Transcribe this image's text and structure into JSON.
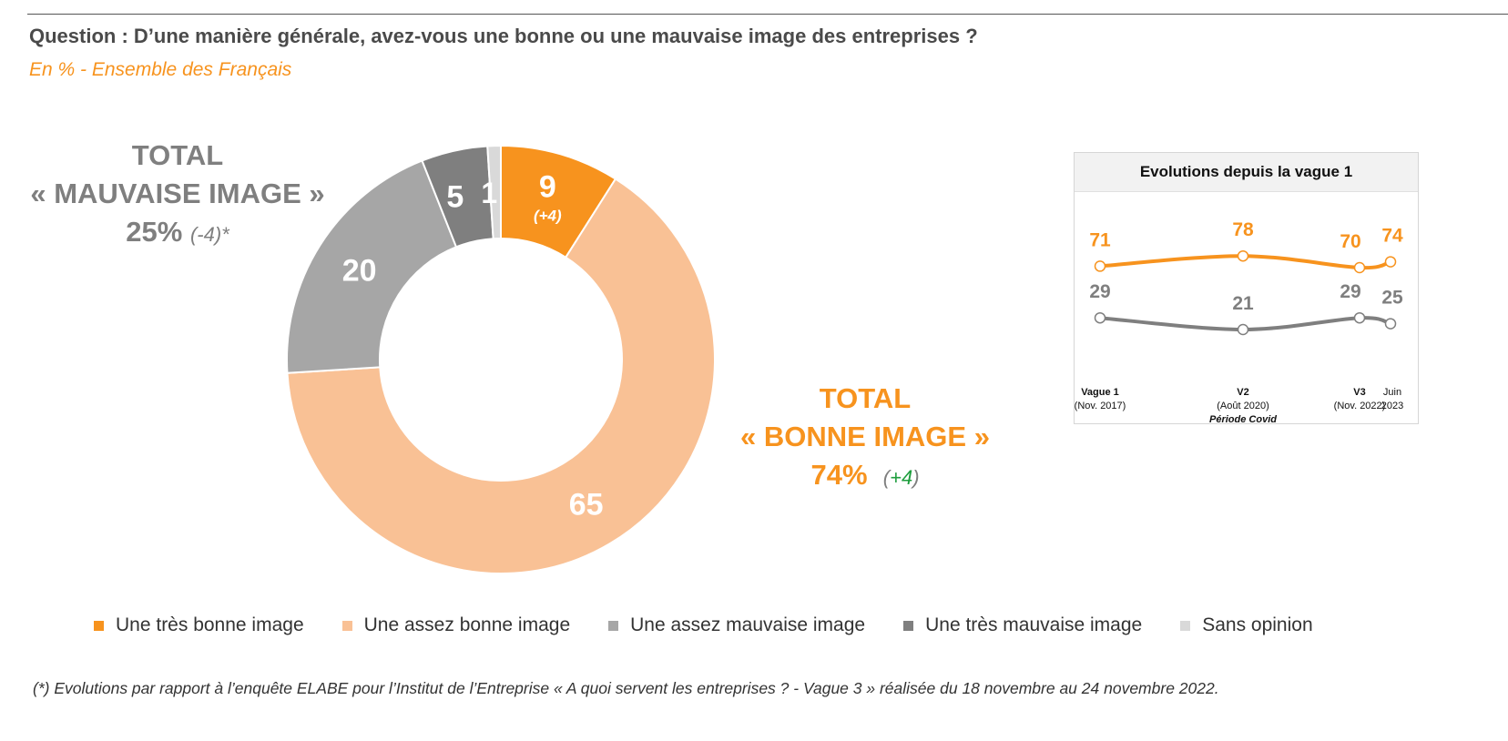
{
  "question": "Question : D’une manière générale, avez-vous une bonne ou une mauvaise image des entreprises ?",
  "subtitle": "En % - Ensemble des Français",
  "total_bad": {
    "line1": "TOTAL",
    "line2": "« MAUVAISE IMAGE »",
    "pct": "25%",
    "delta": "(-4)*"
  },
  "total_good": {
    "line1": "TOTAL",
    "line2": "« BONNE IMAGE »",
    "pct": "74%",
    "delta_open": "(",
    "delta_value": "+4",
    "delta_close": ")"
  },
  "chart_data": [
    {
      "type": "pie",
      "variant": "donut",
      "slices": [
        {
          "name": "Une très bonne image",
          "value": 9,
          "label": "9",
          "sublabel": "(+4)",
          "color": "#f7931e",
          "label_color": "#ffffff"
        },
        {
          "name": "Une assez bonne image",
          "value": 65,
          "label": "65",
          "color": "#f9c195",
          "label_color": "#ffffff"
        },
        {
          "name": "Une assez mauvaise image",
          "value": 20,
          "label": "20",
          "color": "#a6a6a6",
          "label_color": "#ffffff"
        },
        {
          "name": "Une très mauvaise image",
          "value": 5,
          "label": "5",
          "color": "#7f7f7f",
          "label_color": "#ffffff"
        },
        {
          "name": "Sans opinion",
          "value": 1,
          "label": "1",
          "color": "#d9d9d9",
          "label_color": "#000000"
        }
      ],
      "legend_position": "bottom"
    },
    {
      "type": "line",
      "title": "Evolutions depuis la vague 1",
      "x": [
        {
          "line1": "Vague 1",
          "line2": "(Nov. 2017)",
          "line3": ""
        },
        {
          "line1": "V2",
          "line2": "(Août 2020)",
          "line3": "Période Covid"
        },
        {
          "line1": "V3",
          "line2": "(Nov. 2022)",
          "line3": ""
        },
        {
          "line1": "Juin",
          "line2": "2023",
          "line3": ""
        }
      ],
      "series": [
        {
          "values": [
            71,
            78,
            70,
            74
          ],
          "color": "#f7931e"
        },
        {
          "values": [
            29,
            21,
            29,
            25
          ],
          "color": "#7f7f7f"
        }
      ],
      "grid": false
    }
  ],
  "legend": [
    {
      "label": "Une très bonne image",
      "color": "#f7931e"
    },
    {
      "label": "Une assez bonne image",
      "color": "#f9c195"
    },
    {
      "label": "Une assez mauvaise image",
      "color": "#a6a6a6"
    },
    {
      "label": "Une très mauvaise image",
      "color": "#7f7f7f"
    },
    {
      "label": "Sans opinion",
      "color": "#d9d9d9"
    }
  ],
  "footnote": {
    "prefix": "(*) Evolutions par rapport à l’enquête ELABE pour l’Institut de l’Entreprise « ",
    "study": "A quoi servent les entreprises ? - Vague 3",
    "suffix": " » réalisée du 18 novembre au 24 novembre 2022."
  }
}
